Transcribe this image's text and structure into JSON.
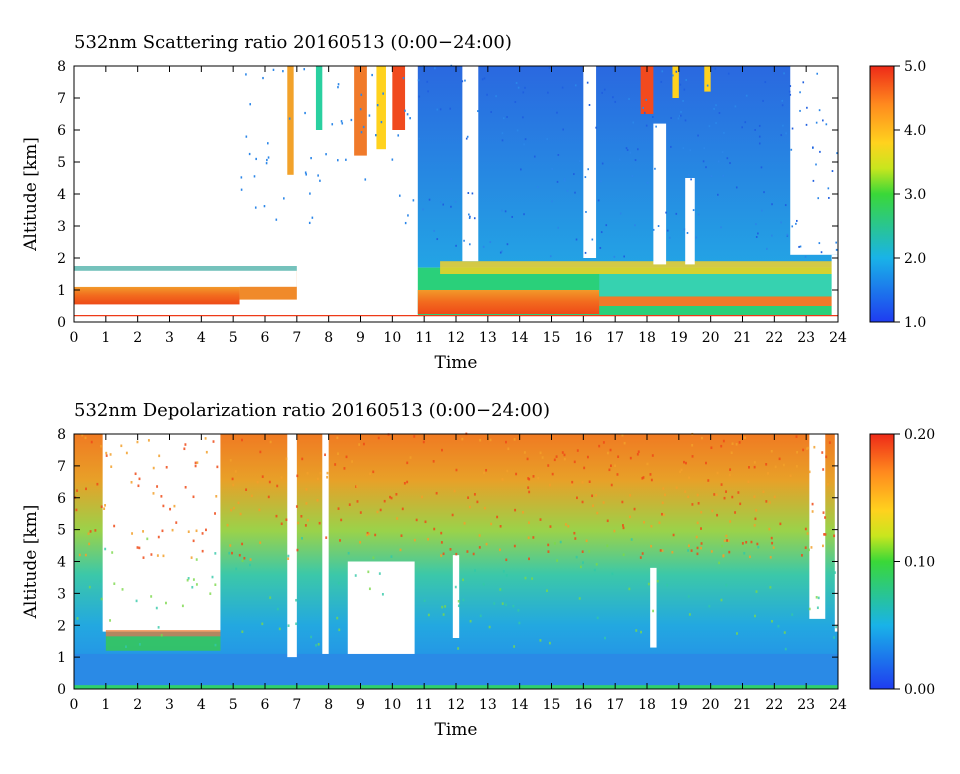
{
  "chart_data": [
    {
      "type": "heatmap",
      "title": "532nm Scattering ratio  20160513 (0:00−24:00)",
      "xlabel": "Time",
      "ylabel": "Altitude [km]",
      "xlim": [
        0,
        24
      ],
      "ylim": [
        0,
        8
      ],
      "x_ticks": [
        "0",
        "1",
        "2",
        "3",
        "4",
        "5",
        "6",
        "7",
        "8",
        "9",
        "10",
        "11",
        "12",
        "13",
        "14",
        "15",
        "16",
        "17",
        "18",
        "19",
        "20",
        "21",
        "22",
        "23",
        "24"
      ],
      "y_ticks": [
        "0",
        "1",
        "2",
        "3",
        "4",
        "5",
        "6",
        "7",
        "8"
      ],
      "colorbar": {
        "min": 1.0,
        "max": 5.0,
        "ticks": [
          "1.0",
          "2.0",
          "3.0",
          "4.0",
          "5.0"
        ]
      }
    },
    {
      "type": "heatmap",
      "title": "532nm Depolarization ratio  20160513 (0:00−24:00)",
      "xlabel": "Time",
      "ylabel": "Altitude [km]",
      "xlim": [
        0,
        24
      ],
      "ylim": [
        0,
        8
      ],
      "x_ticks": [
        "0",
        "1",
        "2",
        "3",
        "4",
        "5",
        "6",
        "7",
        "8",
        "9",
        "10",
        "11",
        "12",
        "13",
        "14",
        "15",
        "16",
        "17",
        "18",
        "19",
        "20",
        "21",
        "22",
        "23",
        "24"
      ],
      "y_ticks": [
        "0",
        "1",
        "2",
        "3",
        "4",
        "5",
        "6",
        "7",
        "8"
      ],
      "colorbar": {
        "min": 0.0,
        "max": 0.2,
        "ticks": [
          "0.00",
          "0.10",
          "0.20"
        ]
      }
    }
  ]
}
